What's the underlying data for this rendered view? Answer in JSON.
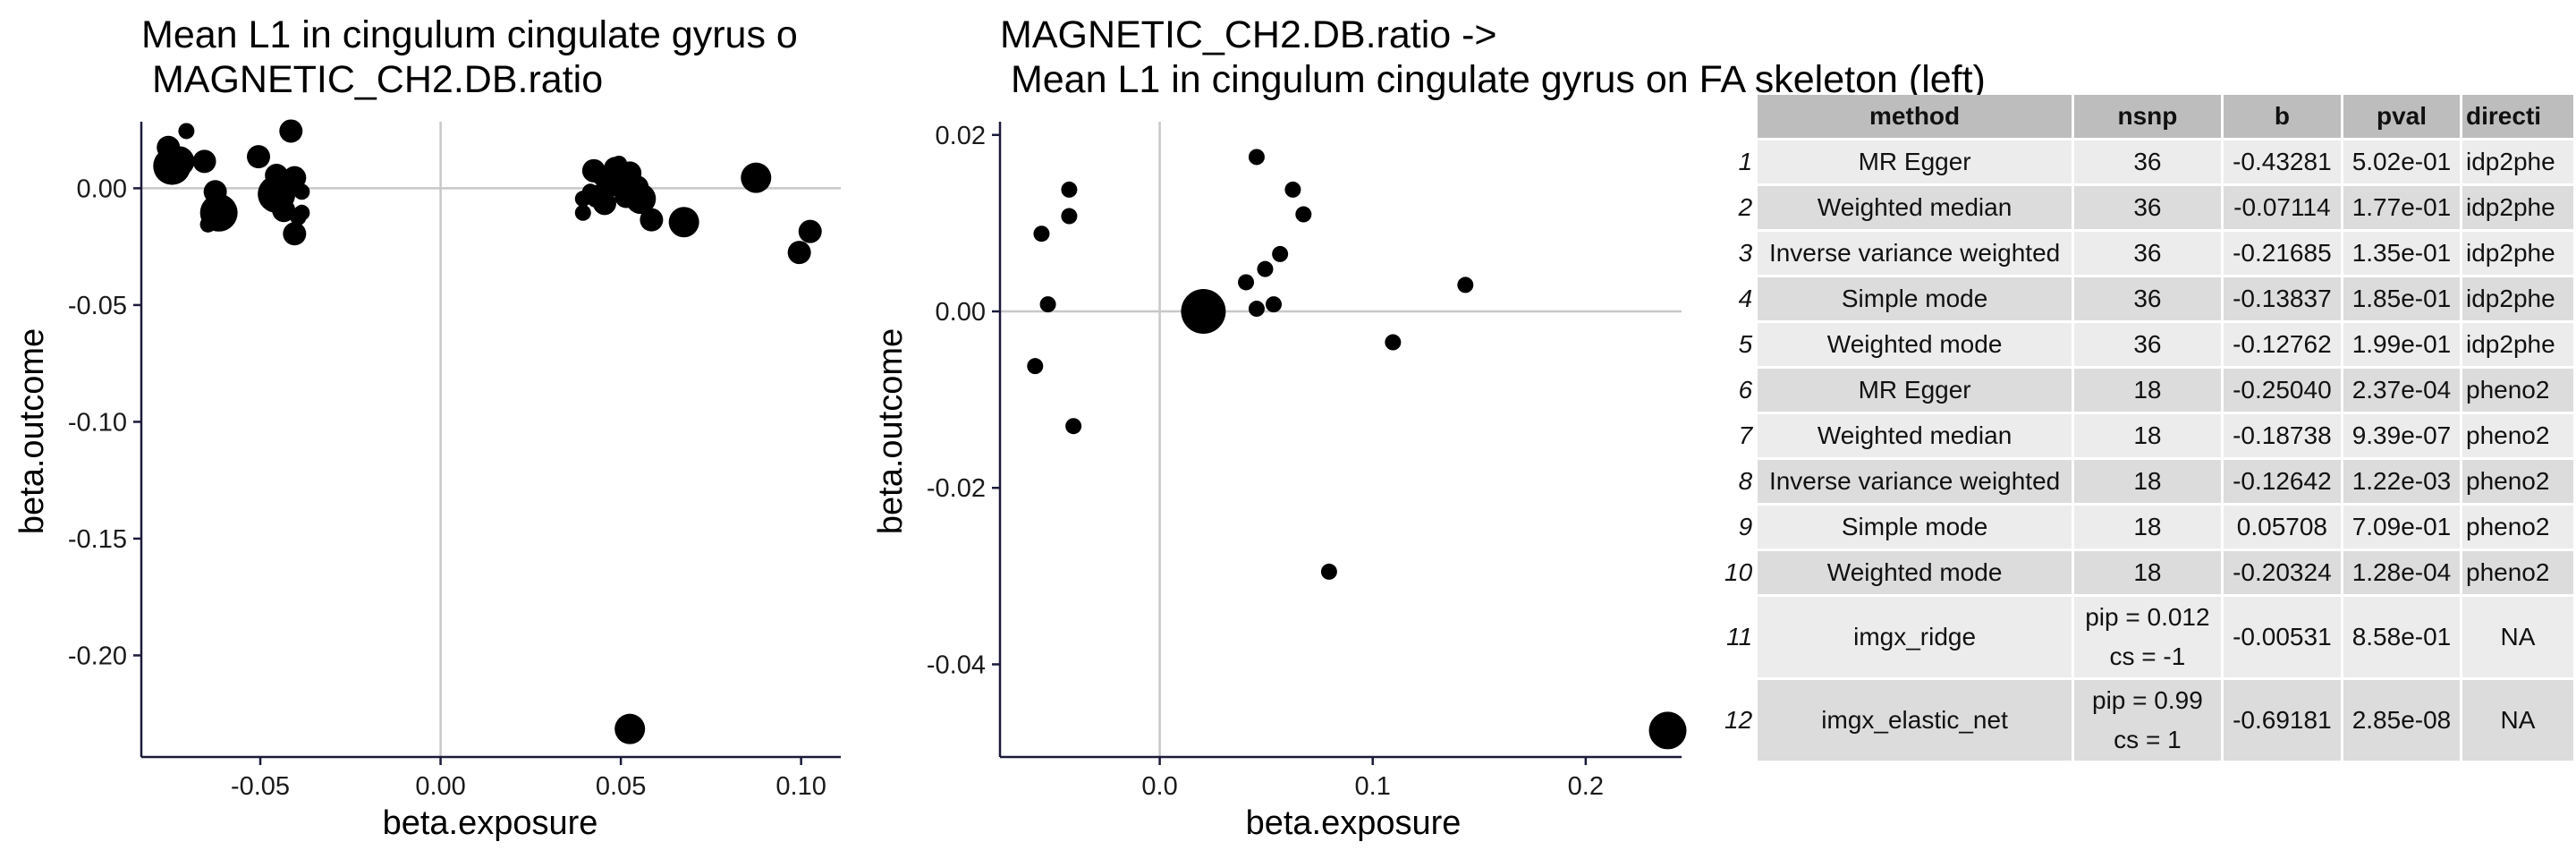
{
  "chart_data": [
    {
      "type": "scatter",
      "title_line1": "Mean L1 in cingulum cingulate gyrus o",
      "title_line2": " MAGNETIC_CH2.DB.ratio",
      "xlabel": "beta.exposure",
      "ylabel": "beta.outcome",
      "xlim": [
        -0.083,
        0.111
      ],
      "ylim": [
        -0.2435,
        0.0285
      ],
      "xticks": [
        -0.05,
        0.0,
        0.05,
        0.1
      ],
      "xtick_labels": [
        "-0.05",
        "0.00",
        "0.05",
        "0.10"
      ],
      "yticks": [
        0.0,
        -0.05,
        -0.1,
        -0.15,
        -0.2
      ],
      "ytick_labels": [
        "0.00",
        "-0.05",
        "-0.10",
        "-0.15",
        "-0.20"
      ],
      "reference_lines": {
        "x": 0,
        "y": 0
      },
      "points": [
        {
          "x": -0.0745,
          "y": 0.0095,
          "w": 3
        },
        {
          "x": -0.0725,
          "y": 0.0115,
          "w": 2
        },
        {
          "x": -0.0755,
          "y": 0.0175,
          "w": 1
        },
        {
          "x": -0.0705,
          "y": 0.0245,
          "w": 0
        },
        {
          "x": -0.0745,
          "y": 0.0125,
          "w": 1
        },
        {
          "x": -0.0655,
          "y": 0.0115,
          "w": 1
        },
        {
          "x": -0.0625,
          "y": -0.0015,
          "w": 1
        },
        {
          "x": -0.0645,
          "y": -0.0155,
          "w": 0
        },
        {
          "x": -0.0625,
          "y": -0.0125,
          "w": 1
        },
        {
          "x": -0.0615,
          "y": -0.0105,
          "w": 3
        },
        {
          "x": -0.0505,
          "y": 0.0135,
          "w": 1
        },
        {
          "x": -0.0455,
          "y": 0.0055,
          "w": 1
        },
        {
          "x": -0.0445,
          "y": 0.0015,
          "w": 1
        },
        {
          "x": -0.0455,
          "y": -0.0025,
          "w": 3
        },
        {
          "x": -0.0445,
          "y": -0.0045,
          "w": 1
        },
        {
          "x": -0.0435,
          "y": -0.0095,
          "w": 1
        },
        {
          "x": -0.0415,
          "y": 0.0245,
          "w": 1
        },
        {
          "x": -0.0405,
          "y": 0.0045,
          "w": 1
        },
        {
          "x": -0.0385,
          "y": -0.0015,
          "w": 0
        },
        {
          "x": -0.0395,
          "y": -0.0125,
          "w": 0
        },
        {
          "x": -0.0405,
          "y": -0.0195,
          "w": 1
        },
        {
          "x": -0.0385,
          "y": -0.0105,
          "w": 0
        },
        {
          "x": 0.0395,
          "y": -0.0045,
          "w": 0
        },
        {
          "x": 0.0395,
          "y": -0.0105,
          "w": 0
        },
        {
          "x": 0.0415,
          "y": -0.0015,
          "w": 0
        },
        {
          "x": 0.0425,
          "y": 0.0075,
          "w": 1
        },
        {
          "x": 0.0435,
          "y": -0.0035,
          "w": 1
        },
        {
          "x": 0.0445,
          "y": 0.0045,
          "w": 0
        },
        {
          "x": 0.0455,
          "y": -0.0065,
          "w": 1
        },
        {
          "x": 0.0475,
          "y": 0.0015,
          "w": 1
        },
        {
          "x": 0.0485,
          "y": 0.0085,
          "w": 1
        },
        {
          "x": 0.0495,
          "y": 0.0105,
          "w": 0
        },
        {
          "x": 0.0505,
          "y": 0.0035,
          "w": 2
        },
        {
          "x": 0.0515,
          "y": -0.0035,
          "w": 1
        },
        {
          "x": 0.0525,
          "y": 0.0065,
          "w": 1
        },
        {
          "x": 0.0545,
          "y": 0.0005,
          "w": 1
        },
        {
          "x": 0.0555,
          "y": -0.0045,
          "w": 2
        },
        {
          "x": 0.0585,
          "y": -0.0135,
          "w": 1
        },
        {
          "x": 0.0675,
          "y": -0.0145,
          "w": 2
        },
        {
          "x": 0.0525,
          "y": -0.2315,
          "w": 2
        },
        {
          "x": 0.0875,
          "y": 0.0045,
          "w": 2
        },
        {
          "x": 0.0995,
          "y": -0.0275,
          "w": 1
        },
        {
          "x": 0.1025,
          "y": -0.0185,
          "w": 1
        }
      ]
    },
    {
      "type": "scatter",
      "title_line1": "MAGNETIC_CH2.DB.ratio ->",
      "title_line2": " Mean L1 in cingulum cingulate gyrus on FA skeleton (left)",
      "xlabel": "beta.exposure",
      "ylabel": "beta.outcome",
      "xlim": [
        -0.075,
        0.245
      ],
      "ylim": [
        -0.0505,
        0.0215
      ],
      "xticks": [
        0.0,
        0.1,
        0.2
      ],
      "xtick_labels": [
        "0.0",
        "0.1",
        "0.2"
      ],
      "yticks": [
        0.02,
        0.0,
        -0.02,
        -0.04
      ],
      "ytick_labels": [
        "0.02",
        "0.00",
        "-0.02",
        "-0.04"
      ],
      "reference_lines": {
        "x": 0,
        "y": 0
      },
      "points": [
        {
          "x": -0.0585,
          "y": -0.0062,
          "w": 0
        },
        {
          "x": -0.0555,
          "y": 0.0088,
          "w": 0
        },
        {
          "x": -0.0525,
          "y": 0.0008,
          "w": 0
        },
        {
          "x": -0.0425,
          "y": 0.0138,
          "w": 0
        },
        {
          "x": -0.0425,
          "y": 0.0108,
          "w": 0
        },
        {
          "x": -0.0405,
          "y": -0.013,
          "w": 0
        },
        {
          "x": 0.0205,
          "y": 0.0,
          "w": 4
        },
        {
          "x": 0.0405,
          "y": 0.0033,
          "w": 0
        },
        {
          "x": 0.0455,
          "y": 0.0175,
          "w": 0
        },
        {
          "x": 0.0455,
          "y": 0.0003,
          "w": 0
        },
        {
          "x": 0.0495,
          "y": 0.0048,
          "w": 0
        },
        {
          "x": 0.0535,
          "y": 0.0008,
          "w": 0
        },
        {
          "x": 0.0565,
          "y": 0.0065,
          "w": 0
        },
        {
          "x": 0.0625,
          "y": 0.0138,
          "w": 0
        },
        {
          "x": 0.0675,
          "y": 0.011,
          "w": 0
        },
        {
          "x": 0.0795,
          "y": -0.0295,
          "w": 0
        },
        {
          "x": 0.1095,
          "y": -0.0035,
          "w": 0
        },
        {
          "x": 0.1435,
          "y": 0.003,
          "w": 0
        },
        {
          "x": 0.2385,
          "y": -0.0475,
          "w": 3
        }
      ]
    }
  ],
  "table": {
    "headers": [
      "method",
      "nsnp",
      "b",
      "pval",
      "directi"
    ],
    "rows": [
      {
        "id": "1",
        "method": "MR Egger",
        "nsnp": "36",
        "b": "-0.43281",
        "pval": "5.02e-01",
        "direction": "idp2phe"
      },
      {
        "id": "2",
        "method": "Weighted median",
        "nsnp": "36",
        "b": "-0.07114",
        "pval": "1.77e-01",
        "direction": "idp2phe"
      },
      {
        "id": "3",
        "method": "Inverse variance weighted",
        "nsnp": "36",
        "b": "-0.21685",
        "pval": "1.35e-01",
        "direction": "idp2phe"
      },
      {
        "id": "4",
        "method": "Simple mode",
        "nsnp": "36",
        "b": "-0.13837",
        "pval": "1.85e-01",
        "direction": "idp2phe"
      },
      {
        "id": "5",
        "method": "Weighted mode",
        "nsnp": "36",
        "b": "-0.12762",
        "pval": "1.99e-01",
        "direction": "idp2phe"
      },
      {
        "id": "6",
        "method": "MR Egger",
        "nsnp": "18",
        "b": "-0.25040",
        "pval": "2.37e-04",
        "direction": "pheno2"
      },
      {
        "id": "7",
        "method": "Weighted median",
        "nsnp": "18",
        "b": "-0.18738",
        "pval": "9.39e-07",
        "direction": "pheno2"
      },
      {
        "id": "8",
        "method": "Inverse variance weighted",
        "nsnp": "18",
        "b": "-0.12642",
        "pval": "1.22e-03",
        "direction": "pheno2"
      },
      {
        "id": "9",
        "method": "Simple mode",
        "nsnp": "18",
        "b": "0.05708",
        "pval": "7.09e-01",
        "direction": "pheno2"
      },
      {
        "id": "10",
        "method": "Weighted mode",
        "nsnp": "18",
        "b": "-0.20324",
        "pval": "1.28e-04",
        "direction": "pheno2"
      },
      {
        "id": "11",
        "method": "imgx_ridge",
        "nsnp_line1": "pip = 0.012",
        "nsnp_line2": "cs = -1",
        "b": "-0.00531",
        "pval": "8.58e-01",
        "direction": "NA"
      },
      {
        "id": "12",
        "method": "imgx_elastic_net",
        "nsnp_line1": "pip = 0.99",
        "nsnp_line2": "cs = 1",
        "b": "-0.69181",
        "pval": "2.85e-08",
        "direction": "NA"
      }
    ]
  }
}
